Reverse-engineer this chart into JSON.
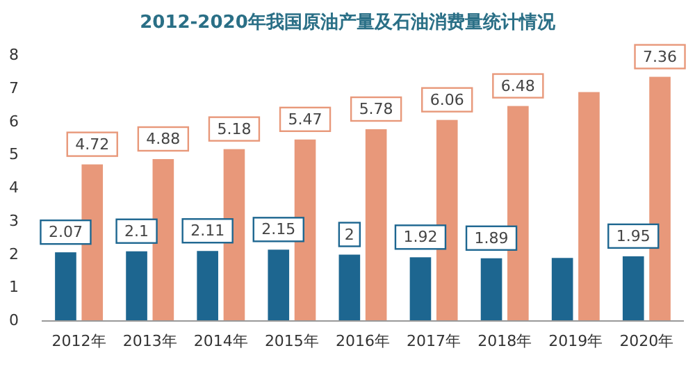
{
  "chart_data": {
    "type": "bar",
    "title": "2012-2020年我国原油产量及石油消费量统计情况",
    "categories": [
      "2012年",
      "2013年",
      "2014年",
      "2015年",
      "2016年",
      "2017年",
      "2018年",
      "2019年",
      "2020年"
    ],
    "series": [
      {
        "color": "#1d6690",
        "values": [
          2.07,
          2.1,
          2.11,
          2.15,
          2,
          1.92,
          1.89,
          1.9,
          1.95
        ],
        "value_labels": [
          "2.07",
          "2.1",
          "2.11",
          "2.15",
          "2",
          "1.92",
          "1.89",
          null,
          "1.95"
        ]
      },
      {
        "color": "#e8987a",
        "values": [
          4.72,
          4.88,
          5.18,
          5.47,
          5.78,
          6.06,
          6.48,
          6.9,
          7.36
        ],
        "value_labels": [
          "4.72",
          "4.88",
          "5.18",
          "5.47",
          "5.78",
          "6.06",
          "6.48",
          null,
          "7.36"
        ]
      }
    ],
    "ylim": [
      0,
      8
    ],
    "yticks": [
      0,
      1,
      2,
      3,
      4,
      5,
      6,
      7,
      8
    ]
  }
}
